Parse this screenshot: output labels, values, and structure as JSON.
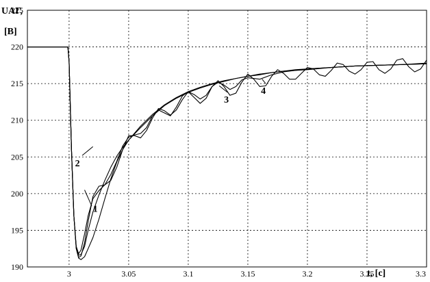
{
  "chart_data": {
    "type": "line",
    "title": "",
    "ylabel_line1": "UАГ,",
    "ylabel_line2": "[В]",
    "xlabel": "t, [c]",
    "xlim": [
      2.965,
      3.3
    ],
    "ylim": [
      190,
      225
    ],
    "xticks": [
      3,
      3.05,
      3.1,
      3.15,
      3.2,
      3.25,
      3.3
    ],
    "yticks": [
      190,
      195,
      200,
      205,
      210,
      215,
      220,
      225
    ],
    "grid": true,
    "series": [
      {
        "name": "1",
        "x": [
          2.965,
          2.999,
          3.0,
          3.002,
          3.004,
          3.006,
          3.008,
          3.01,
          3.013,
          3.016,
          3.02,
          3.025,
          3.03,
          3.035,
          3.04,
          3.045,
          3.05,
          3.06,
          3.07,
          3.08,
          3.09,
          3.1,
          3.11,
          3.12,
          3.13,
          3.14,
          3.15,
          3.16,
          3.17,
          3.18,
          3.19,
          3.2,
          3.22,
          3.24,
          3.26,
          3.28,
          3.3
        ],
        "y": [
          220,
          220,
          218,
          206,
          197,
          192.5,
          191.2,
          191.0,
          191.4,
          192.5,
          194,
          196.5,
          199.3,
          202,
          204.3,
          206,
          207.3,
          209.2,
          210.8,
          212.1,
          213.1,
          213.9,
          214.5,
          215.0,
          215.4,
          215.7,
          216.0,
          216.3,
          216.5,
          216.7,
          216.9,
          217.0,
          217.2,
          217.4,
          217.5,
          217.6,
          217.7
        ]
      },
      {
        "name": "2",
        "x": [
          2.965,
          2.999,
          3.0,
          3.002,
          3.004,
          3.006,
          3.008,
          3.01,
          3.013,
          3.016,
          3.02,
          3.025,
          3.03,
          3.035,
          3.04,
          3.045,
          3.05,
          3.06,
          3.07,
          3.08,
          3.09,
          3.1,
          3.11,
          3.12,
          3.13,
          3.14,
          3.15,
          3.16,
          3.17,
          3.18,
          3.19,
          3.2,
          3.22,
          3.24,
          3.26,
          3.28,
          3.3
        ],
        "y": [
          220,
          220,
          218,
          206,
          197,
          192.6,
          191.6,
          191.7,
          192.8,
          195,
          197.5,
          199.8,
          201.8,
          203.6,
          205.1,
          206.3,
          207.3,
          209.0,
          210.6,
          212.0,
          213.0,
          213.8,
          214.4,
          214.9,
          215.3,
          215.7,
          216.0,
          216.2,
          216.5,
          216.7,
          216.8,
          217.0,
          217.2,
          217.4,
          217.5,
          217.6,
          217.7
        ]
      },
      {
        "name": "3",
        "x": [
          2.965,
          2.999,
          3.0,
          3.002,
          3.004,
          3.006,
          3.008,
          3.01,
          3.013,
          3.016,
          3.02,
          3.025,
          3.03,
          3.035,
          3.04,
          3.045,
          3.05,
          3.055,
          3.06,
          3.065,
          3.07,
          3.075,
          3.08,
          3.085,
          3.09,
          3.095,
          3.1,
          3.105,
          3.11,
          3.115,
          3.12,
          3.125,
          3.13,
          3.135,
          3.14,
          3.145,
          3.15,
          3.16,
          3.17,
          3.18,
          3.19,
          3.2,
          3.22,
          3.24,
          3.26,
          3.28,
          3.3
        ],
        "y": [
          220,
          220,
          218,
          206,
          197,
          192.5,
          191.3,
          191.5,
          193.3,
          196.2,
          199.6,
          201.0,
          201.2,
          201.8,
          203.6,
          206.0,
          207.9,
          207.9,
          207.6,
          208.6,
          210.3,
          211.6,
          211.3,
          210.7,
          211.4,
          212.8,
          213.9,
          213.5,
          212.9,
          213.4,
          214.6,
          215.2,
          214.8,
          214.2,
          214.6,
          215.5,
          215.8,
          215.6,
          216.2,
          216.6,
          216.8,
          216.9,
          217.2,
          217.4,
          217.5,
          217.6,
          217.8
        ]
      },
      {
        "name": "4",
        "x": [
          2.965,
          2.999,
          3.0,
          3.002,
          3.004,
          3.006,
          3.008,
          3.01,
          3.013,
          3.016,
          3.02,
          3.025,
          3.03,
          3.035,
          3.04,
          3.045,
          3.05,
          3.055,
          3.06,
          3.065,
          3.07,
          3.075,
          3.08,
          3.085,
          3.09,
          3.095,
          3.1,
          3.105,
          3.11,
          3.115,
          3.12,
          3.125,
          3.13,
          3.135,
          3.14,
          3.145,
          3.15,
          3.155,
          3.16,
          3.165,
          3.17,
          3.175,
          3.18,
          3.185,
          3.19,
          3.195,
          3.2,
          3.205,
          3.21,
          3.215,
          3.22,
          3.225,
          3.23,
          3.235,
          3.24,
          3.245,
          3.25,
          3.255,
          3.26,
          3.265,
          3.27,
          3.275,
          3.28,
          3.285,
          3.29,
          3.295,
          3.3
        ],
        "y": [
          220,
          220,
          218,
          206,
          197,
          192.8,
          191.8,
          192.3,
          194.5,
          197,
          199.3,
          200.4,
          201.2,
          202.6,
          204.4,
          206.5,
          207.7,
          208.0,
          208.2,
          209.0,
          210.6,
          211.4,
          211.0,
          210.6,
          211.8,
          213.3,
          213.9,
          213.1,
          212.3,
          213.0,
          214.6,
          215.4,
          214.6,
          213.4,
          213.7,
          215.2,
          216.3,
          215.6,
          214.6,
          214.7,
          216.0,
          216.9,
          216.4,
          215.6,
          215.6,
          216.4,
          217.2,
          217.0,
          216.2,
          216.0,
          216.8,
          217.8,
          217.6,
          216.7,
          216.3,
          216.9,
          217.9,
          218.0,
          216.9,
          216.4,
          217.0,
          218.2,
          218.4,
          217.3,
          216.6,
          217.0,
          218.2
        ]
      }
    ],
    "annotations": [
      {
        "text": "1",
        "x": 3.022,
        "y": 197.5
      },
      {
        "text": "2",
        "x": 3.007,
        "y": 203.7
      },
      {
        "text": "3",
        "x": 3.132,
        "y": 212.4
      },
      {
        "text": "4",
        "x": 3.163,
        "y": 213.6
      }
    ],
    "leaders": [
      {
        "from": [
          3.019,
          198.3
        ],
        "to": [
          3.013,
          200.5
        ]
      },
      {
        "from": [
          3.011,
          205.2
        ],
        "to": [
          3.02,
          206.4
        ]
      },
      {
        "from": [
          3.133,
          213.8
        ],
        "to": [
          3.126,
          214.7
        ]
      },
      {
        "from": [
          3.165,
          215.0
        ],
        "to": [
          3.162,
          215.6
        ]
      }
    ]
  }
}
